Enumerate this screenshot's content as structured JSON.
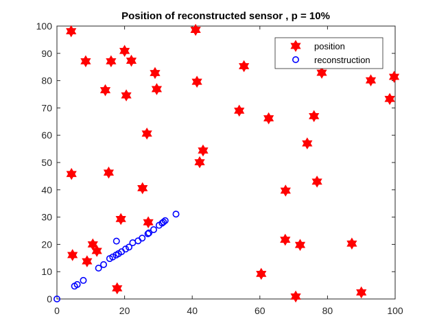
{
  "chart_data": {
    "type": "scatter",
    "title": "Position of reconstructed sensor , p = 10%",
    "xlabel": "",
    "ylabel": "",
    "xlim": [
      0,
      100
    ],
    "ylim": [
      0,
      100
    ],
    "xticks": [
      "0",
      "20",
      "40",
      "60",
      "80",
      "100"
    ],
    "yticks": [
      "0",
      "10",
      "20",
      "30",
      "40",
      "50",
      "60",
      "70",
      "80",
      "90",
      "100"
    ],
    "grid": false,
    "legend_placement": "top-right",
    "series": [
      {
        "name": "position",
        "marker": "hexagram",
        "color": "#FF0000",
        "points": [
          [
            4.2,
            98.1
          ],
          [
            41,
            98.6
          ],
          [
            20,
            90.9
          ],
          [
            8.5,
            87.1
          ],
          [
            16,
            87.1
          ],
          [
            22,
            87.3
          ],
          [
            29,
            82.8
          ],
          [
            55.3,
            85.3
          ],
          [
            78.3,
            82.9
          ],
          [
            41.4,
            79.6
          ],
          [
            92.8,
            80.1
          ],
          [
            99.7,
            81.4
          ],
          [
            14.3,
            76.5
          ],
          [
            29.5,
            76.9
          ],
          [
            20.5,
            74.6
          ],
          [
            98.4,
            73.3
          ],
          [
            53.9,
            69
          ],
          [
            62.6,
            66.2
          ],
          [
            76,
            67
          ],
          [
            26.6,
            60.6
          ],
          [
            74,
            57
          ],
          [
            43.2,
            54.4
          ],
          [
            42.2,
            50.1
          ],
          [
            4.3,
            45.8
          ],
          [
            15.3,
            46.3
          ],
          [
            25.3,
            40.6
          ],
          [
            67.6,
            39.7
          ],
          [
            76.9,
            43
          ],
          [
            18.9,
            29.3
          ],
          [
            27,
            28.1
          ],
          [
            67.5,
            21.7
          ],
          [
            71.9,
            19.8
          ],
          [
            87.2,
            20.3
          ],
          [
            10.6,
            20
          ],
          [
            11.8,
            17.6
          ],
          [
            4.6,
            16.1
          ],
          [
            8.9,
            13.8
          ],
          [
            60.4,
            9.2
          ],
          [
            17.8,
            3.9
          ],
          [
            70.6,
            0.9
          ],
          [
            90,
            2.4
          ]
        ]
      },
      {
        "name": "reconstruction",
        "marker": "circle",
        "color": "#0000FF",
        "points": [
          [
            0,
            0
          ],
          [
            5.2,
            4.7
          ],
          [
            6,
            5.3
          ],
          [
            7.8,
            6.8
          ],
          [
            12.3,
            11.3
          ],
          [
            13.8,
            12.6
          ],
          [
            15.6,
            14.8
          ],
          [
            16.5,
            15.4
          ],
          [
            17.5,
            16.1
          ],
          [
            18.2,
            16.6
          ],
          [
            19.1,
            17.3
          ],
          [
            20.3,
            18.3
          ],
          [
            21.3,
            19
          ],
          [
            17.6,
            21.2
          ],
          [
            24,
            21.3
          ],
          [
            25.2,
            22.3
          ],
          [
            27.2,
            24.2
          ],
          [
            28.6,
            25.4
          ],
          [
            30.2,
            27
          ],
          [
            31.1,
            27.8
          ],
          [
            32,
            28.7
          ],
          [
            35.2,
            31.1
          ],
          [
            31.5,
            28.2
          ],
          [
            26.9,
            23.9
          ],
          [
            22.4,
            20.6
          ]
        ]
      }
    ]
  }
}
